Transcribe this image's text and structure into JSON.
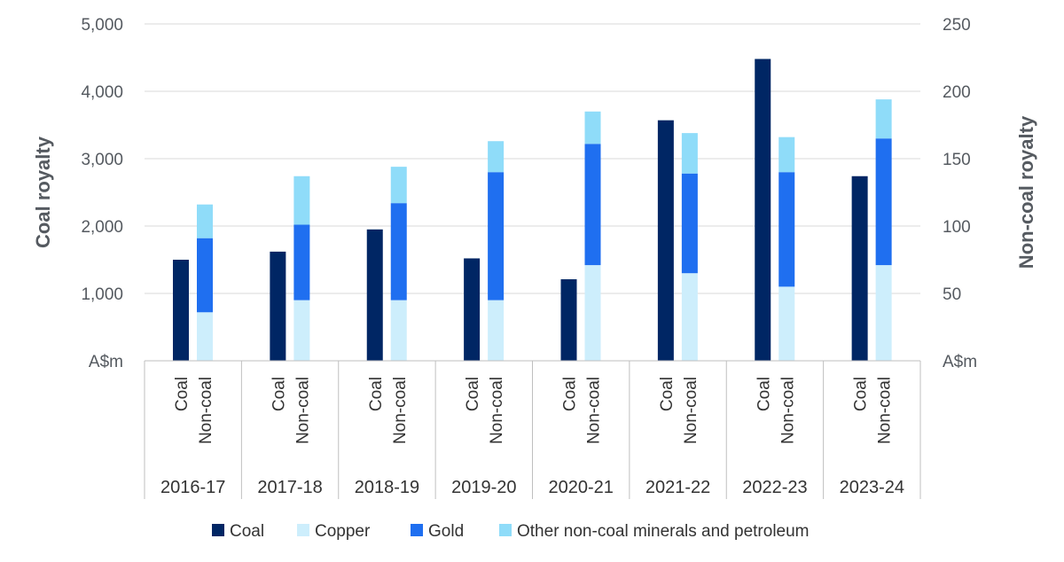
{
  "chart_data": {
    "type": "bar",
    "stacked": true,
    "y_left": {
      "label": "Coal royalty",
      "unit": "A$m",
      "ticks": [
        "1,000",
        "2,000",
        "3,000",
        "4,000",
        "5,000"
      ],
      "tick_values": [
        1000,
        2000,
        3000,
        4000,
        5000
      ],
      "ylim": [
        0,
        5000
      ]
    },
    "y_right": {
      "label": "Non-coal royalty",
      "unit": "A$m",
      "ticks": [
        "50",
        "100",
        "150",
        "200",
        "250"
      ],
      "tick_values": [
        50,
        100,
        150,
        200,
        250
      ],
      "ylim": [
        0,
        250
      ]
    },
    "categories": [
      "2016-17",
      "2017-18",
      "2018-19",
      "2019-20",
      "2020-21",
      "2021-22",
      "2022-23",
      "2023-24"
    ],
    "sub_labels": [
      "Coal",
      "Non-coal"
    ],
    "coal": [
      1500,
      1620,
      1950,
      1520,
      1210,
      3570,
      4480,
      2740
    ],
    "non_coal_series": [
      {
        "name": "Copper",
        "color": "#cdeefc",
        "values": [
          36,
          45,
          45,
          45,
          71,
          65,
          55,
          71
        ]
      },
      {
        "name": "Gold",
        "color": "#1f6ff0",
        "values": [
          55,
          56,
          72,
          95,
          90,
          74,
          85,
          94
        ]
      },
      {
        "name": "Other non-coal minerals and petroleum",
        "color": "#8fdcf9",
        "values": [
          25,
          36,
          27,
          23,
          24,
          30,
          26,
          29
        ]
      }
    ],
    "coal_color": "#002664",
    "legend": [
      "Coal",
      "Copper",
      "Gold",
      "Other non-coal minerals and petroleum"
    ],
    "legend_position": "bottom"
  }
}
